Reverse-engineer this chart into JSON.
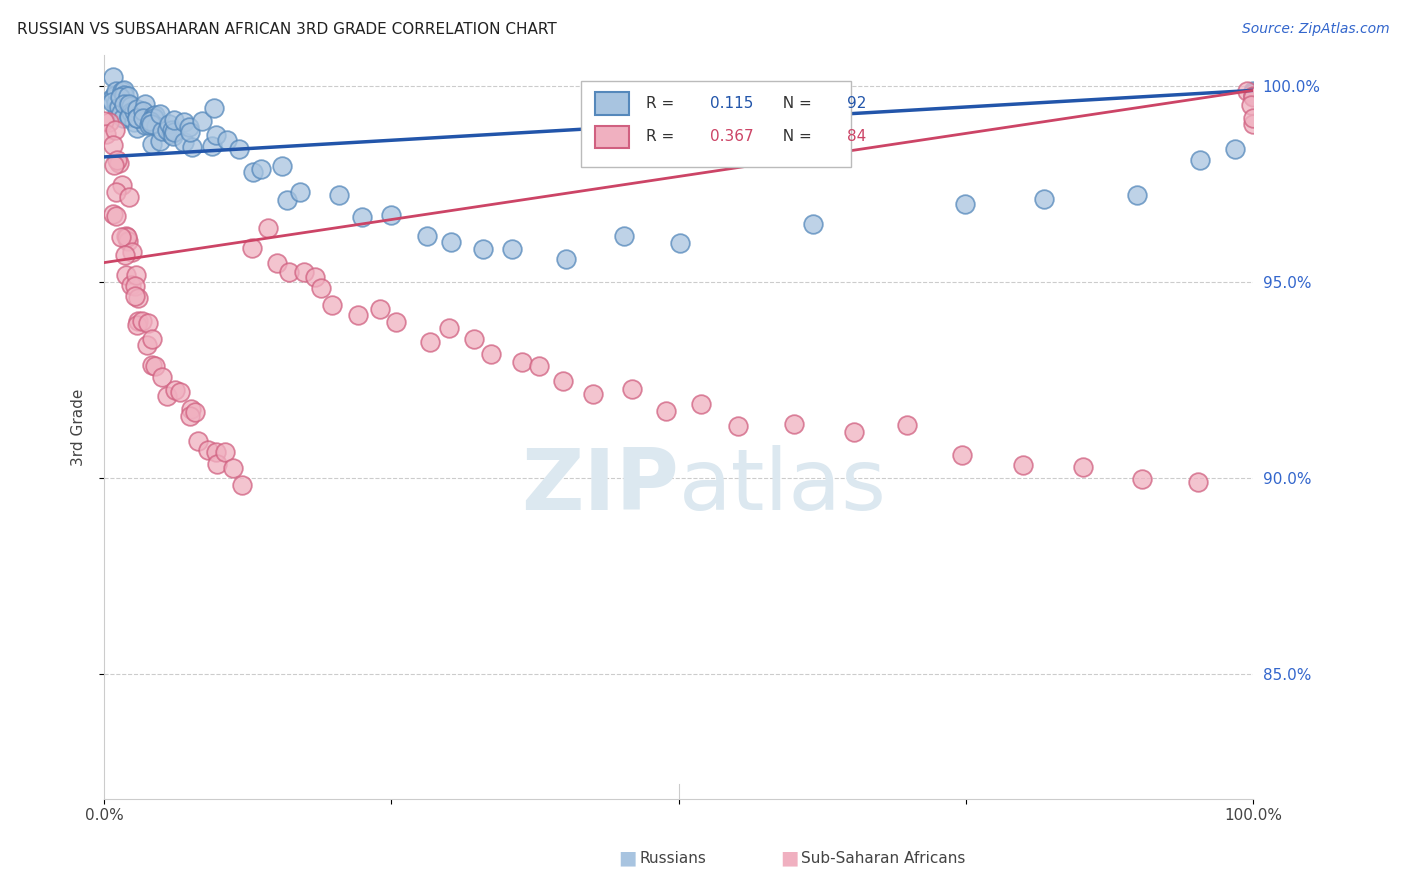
{
  "title": "RUSSIAN VS SUBSAHARAN AFRICAN 3RD GRADE CORRELATION CHART",
  "source": "Source: ZipAtlas.com",
  "ylabel": "3rd Grade",
  "y_range": [
    0.818,
    1.008
  ],
  "x_range": [
    0.0,
    1.0
  ],
  "y_ticks": [
    1.0,
    0.95,
    0.9,
    0.85
  ],
  "y_tick_labels": [
    "100.0%",
    "95.0%",
    "90.0%",
    "85.0%"
  ],
  "legend_r_russian": "0.115",
  "legend_n_russian": "92",
  "legend_r_african": "0.367",
  "legend_n_african": "84",
  "russian_face_color": "#a8c4e0",
  "russian_edge_color": "#5588bb",
  "african_face_color": "#f0b0c0",
  "african_edge_color": "#d06080",
  "russian_line_color": "#2255aa",
  "african_line_color": "#cc4466",
  "background_color": "#ffffff",
  "watermark_color": "#dce8f0",
  "grid_color": "#cccccc",
  "title_color": "#222222",
  "source_color": "#3366cc",
  "ytick_color": "#3366cc",
  "xtick_color": "#444444",
  "ylabel_color": "#444444",
  "russian_line_start_y": 0.982,
  "russian_line_end_y": 0.999,
  "african_line_start_y": 0.955,
  "african_line_end_y": 0.999,
  "russian_scatter_x": [
    0.005,
    0.007,
    0.008,
    0.009,
    0.01,
    0.01,
    0.011,
    0.012,
    0.013,
    0.014,
    0.015,
    0.015,
    0.016,
    0.017,
    0.018,
    0.018,
    0.019,
    0.02,
    0.021,
    0.022,
    0.022,
    0.023,
    0.024,
    0.025,
    0.026,
    0.026,
    0.027,
    0.028,
    0.029,
    0.03,
    0.031,
    0.032,
    0.033,
    0.034,
    0.035,
    0.036,
    0.037,
    0.038,
    0.039,
    0.04,
    0.041,
    0.042,
    0.043,
    0.044,
    0.045,
    0.046,
    0.047,
    0.048,
    0.049,
    0.05,
    0.052,
    0.054,
    0.056,
    0.058,
    0.06,
    0.062,
    0.065,
    0.068,
    0.07,
    0.073,
    0.075,
    0.08,
    0.085,
    0.09,
    0.095,
    0.1,
    0.11,
    0.12,
    0.13,
    0.14,
    0.15,
    0.16,
    0.17,
    0.2,
    0.22,
    0.25,
    0.28,
    0.3,
    0.33,
    0.36,
    0.4,
    0.45,
    0.5,
    0.62,
    0.75,
    0.82,
    0.9,
    0.95,
    0.98,
    1.0,
    1.0,
    1.0
  ],
  "russian_scatter_y": [
    0.998,
    0.997,
    0.999,
    0.996,
    0.998,
    0.997,
    0.995,
    0.997,
    0.996,
    0.998,
    0.994,
    0.996,
    0.998,
    0.993,
    0.995,
    0.997,
    0.994,
    0.996,
    0.993,
    0.995,
    0.992,
    0.994,
    0.996,
    0.993,
    0.991,
    0.993,
    0.995,
    0.992,
    0.994,
    0.991,
    0.993,
    0.99,
    0.992,
    0.994,
    0.991,
    0.993,
    0.99,
    0.992,
    0.994,
    0.991,
    0.993,
    0.99,
    0.992,
    0.989,
    0.991,
    0.993,
    0.99,
    0.988,
    0.99,
    0.992,
    0.989,
    0.991,
    0.993,
    0.99,
    0.988,
    0.99,
    0.992,
    0.989,
    0.991,
    0.988,
    0.99,
    0.987,
    0.989,
    0.991,
    0.988,
    0.986,
    0.984,
    0.982,
    0.98,
    0.978,
    0.976,
    0.974,
    0.972,
    0.97,
    0.968,
    0.966,
    0.964,
    0.962,
    0.96,
    0.958,
    0.956,
    0.96,
    0.962,
    0.965,
    0.968,
    0.97,
    0.975,
    0.98,
    0.985,
    0.998,
    0.997,
    0.996
  ],
  "african_scatter_x": [
    0.004,
    0.005,
    0.006,
    0.007,
    0.008,
    0.009,
    0.01,
    0.011,
    0.012,
    0.013,
    0.014,
    0.015,
    0.016,
    0.017,
    0.018,
    0.019,
    0.02,
    0.021,
    0.022,
    0.023,
    0.024,
    0.025,
    0.026,
    0.027,
    0.028,
    0.03,
    0.032,
    0.034,
    0.036,
    0.038,
    0.04,
    0.043,
    0.046,
    0.05,
    0.055,
    0.06,
    0.065,
    0.07,
    0.075,
    0.08,
    0.085,
    0.09,
    0.095,
    0.1,
    0.105,
    0.11,
    0.12,
    0.13,
    0.14,
    0.15,
    0.16,
    0.17,
    0.18,
    0.19,
    0.2,
    0.22,
    0.24,
    0.26,
    0.28,
    0.3,
    0.32,
    0.34,
    0.36,
    0.38,
    0.4,
    0.43,
    0.46,
    0.49,
    0.52,
    0.55,
    0.6,
    0.65,
    0.7,
    0.75,
    0.8,
    0.85,
    0.9,
    0.95,
    1.0,
    1.0,
    1.0,
    1.0,
    1.0,
    1.0
  ],
  "african_scatter_y": [
    0.992,
    0.99,
    0.988,
    0.986,
    0.984,
    0.982,
    0.98,
    0.978,
    0.976,
    0.974,
    0.972,
    0.97,
    0.968,
    0.966,
    0.964,
    0.962,
    0.96,
    0.958,
    0.956,
    0.954,
    0.952,
    0.95,
    0.948,
    0.946,
    0.944,
    0.942,
    0.94,
    0.938,
    0.936,
    0.934,
    0.932,
    0.93,
    0.928,
    0.926,
    0.924,
    0.922,
    0.92,
    0.918,
    0.916,
    0.914,
    0.912,
    0.91,
    0.908,
    0.906,
    0.904,
    0.902,
    0.9,
    0.96,
    0.958,
    0.956,
    0.954,
    0.952,
    0.95,
    0.948,
    0.946,
    0.944,
    0.942,
    0.94,
    0.938,
    0.936,
    0.934,
    0.932,
    0.93,
    0.928,
    0.926,
    0.924,
    0.922,
    0.92,
    0.918,
    0.916,
    0.914,
    0.912,
    0.91,
    0.908,
    0.906,
    0.904,
    0.902,
    0.9,
    0.998,
    0.996,
    0.994,
    0.992,
    0.99,
    0.988
  ]
}
